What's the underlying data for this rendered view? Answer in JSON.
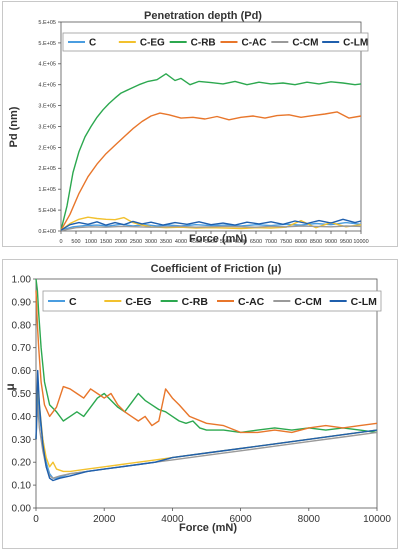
{
  "chart_data": [
    {
      "type": "line",
      "title": "Penetration depth (Pd)",
      "xlabel": "Force (mN)",
      "ylabel": "Pd (nm)",
      "xlim": [
        0,
        10000
      ],
      "ylim": [
        0,
        500000
      ],
      "x_ticks": [
        0,
        500,
        1000,
        1500,
        2000,
        2500,
        3000,
        3500,
        4000,
        4500,
        5000,
        5500,
        6000,
        6500,
        7000,
        7500,
        8000,
        8500,
        9000,
        9500,
        10000
      ],
      "x_tick_labels": [
        "0",
        "500",
        "1000",
        "1500",
        "2000",
        "2500",
        "3000",
        "3500",
        "4000",
        "4500",
        "5000",
        "5500",
        "6000",
        "6500",
        "7000",
        "7500",
        "8000",
        "8500",
        "9000",
        "9500",
        "10000"
      ],
      "y_ticks": [
        0,
        50000,
        100000,
        150000,
        200000,
        250000,
        300000,
        350000,
        400000,
        450000,
        500000
      ],
      "y_tick_labels": [
        "0.E+00",
        "5.E+04",
        "1.E+05",
        "2.E+05",
        "2.E+05",
        "3.E+05",
        "3.E+05",
        "4.E+05",
        "4.E+05",
        "5.E+05",
        "5.E+05"
      ],
      "legend_position": "top",
      "grid": false,
      "series": [
        {
          "name": "C",
          "color": "#4a9de0",
          "x": [
            0,
            400,
            800,
            1200,
            1600,
            2000,
            2400,
            2800,
            3200,
            3600,
            4000,
            4500,
            5000,
            5500,
            6000,
            6500,
            7000,
            7500,
            8000,
            8500,
            9000,
            9500,
            10000
          ],
          "y": [
            2000,
            10000,
            13000,
            14000,
            12000,
            16000,
            12000,
            15000,
            12000,
            14000,
            12000,
            15000,
            13000,
            14000,
            12000,
            15000,
            13000,
            16000,
            14000,
            18000,
            15000,
            20000,
            16000
          ]
        },
        {
          "name": "C-EG",
          "color": "#f2c12e",
          "x": [
            0,
            300,
            600,
            900,
            1200,
            1500,
            1800,
            2100,
            2400,
            2700,
            3000,
            3500,
            4000,
            4500,
            5000,
            5500,
            6000,
            6500,
            7000,
            7500,
            8000,
            8500,
            9000,
            9500,
            10000
          ],
          "y": [
            2000,
            18000,
            28000,
            33000,
            30000,
            28000,
            27000,
            32000,
            20000,
            14000,
            10000,
            8000,
            9000,
            7000,
            8000,
            7000,
            6000,
            8000,
            7000,
            9000,
            25000,
            8000,
            20000,
            10000,
            15000
          ]
        },
        {
          "name": "C-RB",
          "color": "#2ca84f",
          "x": [
            0,
            200,
            400,
            600,
            800,
            1000,
            1200,
            1400,
            1600,
            1800,
            2000,
            2300,
            2600,
            2900,
            3200,
            3500,
            3800,
            4000,
            4300,
            4600,
            5000,
            5400,
            5800,
            6200,
            6600,
            7000,
            7400,
            7800,
            8200,
            8600,
            9000,
            9400,
            9800,
            10000
          ],
          "y": [
            2000,
            60000,
            140000,
            190000,
            225000,
            250000,
            272000,
            290000,
            305000,
            318000,
            330000,
            340000,
            350000,
            358000,
            362000,
            376000,
            360000,
            365000,
            350000,
            358000,
            355000,
            352000,
            358000,
            350000,
            356000,
            352000,
            354000,
            350000,
            356000,
            352000,
            357000,
            354000,
            350000,
            352000
          ]
        },
        {
          "name": "C-AC",
          "color": "#e8762b",
          "x": [
            0,
            300,
            600,
            900,
            1200,
            1500,
            1800,
            2100,
            2400,
            2700,
            3000,
            3300,
            3600,
            4000,
            4400,
            4800,
            5200,
            5600,
            6000,
            6400,
            6800,
            7200,
            7600,
            8000,
            8400,
            8800,
            9200,
            9600,
            10000
          ],
          "y": [
            2000,
            40000,
            90000,
            130000,
            160000,
            185000,
            205000,
            225000,
            245000,
            262000,
            275000,
            282000,
            278000,
            270000,
            272000,
            268000,
            274000,
            266000,
            272000,
            275000,
            270000,
            276000,
            278000,
            272000,
            276000,
            280000,
            285000,
            270000,
            275000
          ]
        },
        {
          "name": "C-CM",
          "color": "#9a9a9a",
          "x": [
            0,
            500,
            1000,
            1500,
            2000,
            2500,
            3000,
            3500,
            4000,
            4500,
            5000,
            5500,
            6000,
            6500,
            7000,
            7500,
            8000,
            8500,
            9000,
            9500,
            10000
          ],
          "y": [
            1000,
            8000,
            10000,
            9000,
            11000,
            10000,
            9000,
            10000,
            11000,
            9000,
            10000,
            11000,
            10000,
            9000,
            11000,
            10000,
            12000,
            11000,
            10000,
            12000,
            11000
          ]
        },
        {
          "name": "C-LM",
          "color": "#1f5fad",
          "x": [
            0,
            300,
            600,
            900,
            1200,
            1500,
            1800,
            2100,
            2400,
            2700,
            3000,
            3400,
            3800,
            4200,
            4600,
            5000,
            5400,
            5800,
            6200,
            6600,
            7000,
            7400,
            7800,
            8200,
            8600,
            9000,
            9400,
            9800,
            10000
          ],
          "y": [
            2000,
            15000,
            20000,
            16000,
            22000,
            14000,
            20000,
            15000,
            23000,
            17000,
            21000,
            14000,
            20000,
            16000,
            22000,
            15000,
            19000,
            14000,
            21000,
            17000,
            22000,
            16000,
            24000,
            18000,
            25000,
            19000,
            28000,
            20000,
            24000
          ]
        }
      ]
    },
    {
      "type": "line",
      "title": "Coefficient of Friction (μ)",
      "xlabel": "Force (mN)",
      "ylabel": "μ",
      "xlim": [
        0,
        10000
      ],
      "ylim": [
        0,
        1
      ],
      "x_ticks": [
        0,
        2000,
        4000,
        6000,
        8000,
        10000
      ],
      "x_tick_labels": [
        "0",
        "2000",
        "4000",
        "6000",
        "8000",
        "10000"
      ],
      "y_ticks": [
        0,
        0.1,
        0.2,
        0.3,
        0.4,
        0.5,
        0.6,
        0.7,
        0.8,
        0.9,
        1.0
      ],
      "y_tick_labels": [
        "0.00",
        "0.10",
        "0.20",
        "0.30",
        "0.40",
        "0.50",
        "0.60",
        "0.70",
        "0.80",
        "0.90",
        "1.00"
      ],
      "legend_position": "top",
      "grid": false,
      "series": [
        {
          "name": "C",
          "color": "#4a9de0",
          "x": [
            0,
            50,
            100,
            150,
            200,
            300,
            400,
            500,
            600,
            800,
            1000,
            1500,
            2000,
            2500,
            3000,
            3500,
            4000,
            5000,
            6000,
            7000,
            8000,
            9000,
            10000
          ],
          "y": [
            0.3,
            0.5,
            0.4,
            0.35,
            0.3,
            0.2,
            0.15,
            0.13,
            0.13,
            0.14,
            0.15,
            0.16,
            0.17,
            0.18,
            0.19,
            0.2,
            0.22,
            0.24,
            0.26,
            0.28,
            0.3,
            0.32,
            0.34
          ]
        },
        {
          "name": "C-EG",
          "color": "#f2c12e",
          "x": [
            0,
            50,
            100,
            200,
            300,
            400,
            500,
            600,
            800,
            1000,
            1500,
            2000,
            2500,
            3000,
            3500,
            4000,
            5000,
            6000,
            7000,
            8000,
            9000,
            10000
          ],
          "y": [
            0.3,
            0.55,
            0.45,
            0.3,
            0.22,
            0.18,
            0.2,
            0.17,
            0.16,
            0.16,
            0.17,
            0.18,
            0.19,
            0.2,
            0.21,
            0.22,
            0.24,
            0.26,
            0.28,
            0.3,
            0.32,
            0.34
          ]
        },
        {
          "name": "C-RB",
          "color": "#2ca84f",
          "x": [
            0,
            40,
            80,
            150,
            250,
            400,
            600,
            800,
            1000,
            1200,
            1400,
            1600,
            1800,
            2000,
            2200,
            2400,
            2600,
            2800,
            3000,
            3200,
            3400,
            3600,
            3800,
            4000,
            4200,
            4400,
            4600,
            4800,
            5000,
            5500,
            6000,
            6500,
            7000,
            7500,
            8000,
            8500,
            9000,
            9500,
            10000
          ],
          "y": [
            1.0,
            0.95,
            0.85,
            0.7,
            0.55,
            0.45,
            0.42,
            0.38,
            0.4,
            0.42,
            0.4,
            0.44,
            0.48,
            0.5,
            0.47,
            0.44,
            0.42,
            0.46,
            0.5,
            0.47,
            0.45,
            0.43,
            0.42,
            0.4,
            0.38,
            0.37,
            0.38,
            0.35,
            0.34,
            0.34,
            0.33,
            0.34,
            0.35,
            0.34,
            0.35,
            0.34,
            0.35,
            0.34,
            0.33
          ]
        },
        {
          "name": "C-AC",
          "color": "#e8762b",
          "x": [
            0,
            40,
            80,
            150,
            250,
            400,
            600,
            800,
            1000,
            1200,
            1400,
            1600,
            1800,
            2000,
            2200,
            2400,
            2600,
            2800,
            3000,
            3200,
            3400,
            3600,
            3800,
            4000,
            4200,
            4500,
            5000,
            5500,
            6000,
            6500,
            7000,
            7500,
            8000,
            8500,
            9000,
            9500,
            10000
          ],
          "y": [
            0.95,
            0.8,
            0.7,
            0.55,
            0.45,
            0.4,
            0.44,
            0.53,
            0.52,
            0.5,
            0.48,
            0.52,
            0.5,
            0.48,
            0.5,
            0.45,
            0.42,
            0.4,
            0.38,
            0.4,
            0.36,
            0.38,
            0.52,
            0.48,
            0.45,
            0.4,
            0.37,
            0.36,
            0.33,
            0.33,
            0.34,
            0.33,
            0.35,
            0.36,
            0.35,
            0.36,
            0.37
          ]
        },
        {
          "name": "C-CM",
          "color": "#9a9a9a",
          "x": [
            0,
            50,
            100,
            200,
            300,
            400,
            500,
            700,
            1000,
            1500,
            2000,
            2500,
            3000,
            3500,
            4000,
            5000,
            6000,
            7000,
            8000,
            9000,
            10000
          ],
          "y": [
            0.3,
            0.45,
            0.35,
            0.25,
            0.18,
            0.14,
            0.13,
            0.14,
            0.15,
            0.16,
            0.17,
            0.18,
            0.19,
            0.2,
            0.21,
            0.23,
            0.25,
            0.27,
            0.29,
            0.31,
            0.33
          ]
        },
        {
          "name": "C-LM",
          "color": "#1f5fad",
          "x": [
            0,
            50,
            100,
            200,
            300,
            400,
            500,
            700,
            1000,
            1500,
            2000,
            2500,
            3000,
            3500,
            4000,
            5000,
            6000,
            7000,
            8000,
            9000,
            10000
          ],
          "y": [
            0.3,
            0.6,
            0.45,
            0.28,
            0.18,
            0.13,
            0.12,
            0.13,
            0.14,
            0.16,
            0.17,
            0.18,
            0.19,
            0.2,
            0.22,
            0.24,
            0.26,
            0.28,
            0.3,
            0.32,
            0.34
          ]
        }
      ]
    }
  ]
}
